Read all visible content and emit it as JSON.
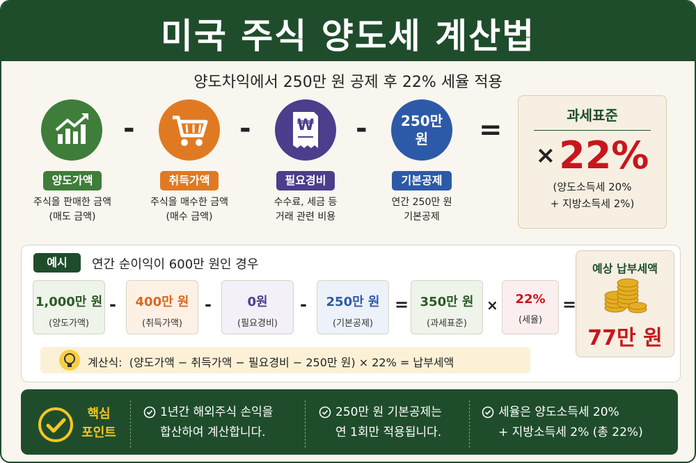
{
  "header": {
    "title": "미국 주식 양도세 계산법"
  },
  "subtitle": "양도차익에서 250만 원 공제 후 22% 세율 적용",
  "formula": {
    "items": [
      {
        "label": "양도가액",
        "desc": [
          "주식을 판매한 금액",
          "(매도 금액)"
        ]
      },
      {
        "label": "취득가액",
        "desc": [
          "주식을 매수한 금액",
          "(매수 금액)"
        ]
      },
      {
        "icon_symbol": "₩",
        "label": "필요경비",
        "desc": [
          "수수료, 세금 등",
          "거래 관련 비용"
        ]
      },
      {
        "icon_text": [
          "250만",
          "원"
        ],
        "label": "기본공제",
        "desc": [
          "연간 250만 원",
          "기본공제"
        ]
      }
    ],
    "operators": [
      "-",
      "-",
      "-",
      "="
    ],
    "result": {
      "title": "과세표준",
      "multiply": "×",
      "rate": "22%",
      "note": [
        "(양도소득세 20%",
        "+ 지방소득세 2%)"
      ]
    }
  },
  "example": {
    "label": "예시",
    "text": "연간 순이익이 600만 원인 경우",
    "boxes": [
      {
        "value": "1,000만 원",
        "label": "(양도가액)"
      },
      {
        "value": "400만 원",
        "label": "(취득가액)"
      },
      {
        "value": "0원",
        "label": "(필요경비)"
      },
      {
        "value": "250만 원",
        "label": "(기본공제)"
      },
      {
        "value": "350만 원",
        "label": "(과세표준)"
      },
      {
        "value": "22%",
        "label": "(세율)"
      }
    ],
    "operators": [
      "-",
      "-",
      "-",
      "=",
      "×",
      "="
    ],
    "result": {
      "title": "예상 납부세액",
      "amount": "77만 원"
    },
    "hint": "계산식:  (양도가액 − 취득가액 − 필요경비 − 250만 원) × 22% = 납부세액"
  },
  "footer": {
    "title": [
      "핵심",
      "포인트"
    ],
    "points": [
      [
        "1년간 해외주식 손익을",
        "합산하여 계산합니다."
      ],
      [
        "250만 원 기본공제는",
        "연 1회만 적용됩니다."
      ],
      [
        "세율은 양도소득세 20%",
        "+ 지방소득세 2% (총 22%)"
      ]
    ]
  }
}
